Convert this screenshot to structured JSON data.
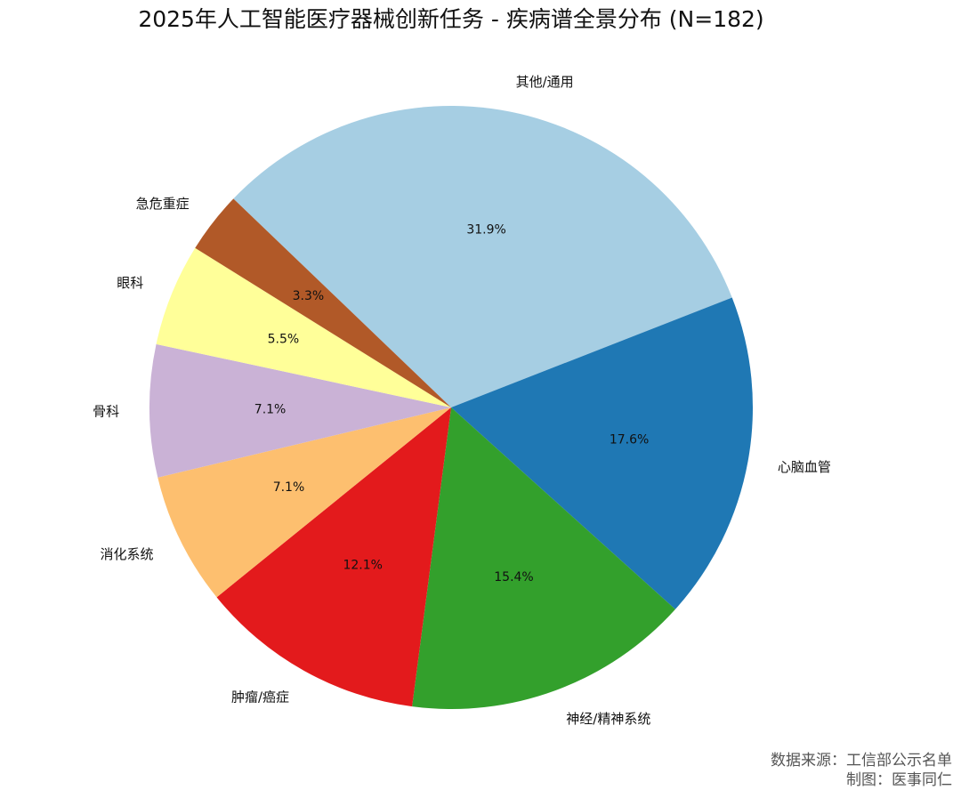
{
  "chart_data": {
    "type": "pie",
    "title": "2025年人工智能医疗器械创新任务 - 疾病谱全景分布 (N=182)",
    "slices": [
      {
        "label": "其他/通用",
        "value": 31.9,
        "pct_label": "31.9%",
        "color": "#a6cee3"
      },
      {
        "label": "心脑血管",
        "value": 17.6,
        "pct_label": "17.6%",
        "color": "#1f78b4"
      },
      {
        "label": "神经/精神系统",
        "value": 15.4,
        "pct_label": "15.4%",
        "color": "#33a02c"
      },
      {
        "label": "肿瘤/癌症",
        "value": 12.1,
        "pct_label": "12.1%",
        "color": "#e31a1c"
      },
      {
        "label": "消化系统",
        "value": 7.1,
        "pct_label": "7.1%",
        "color": "#fdbf6f"
      },
      {
        "label": "骨科",
        "value": 7.1,
        "pct_label": "7.1%",
        "color": "#cab2d6"
      },
      {
        "label": "眼科",
        "value": 5.5,
        "pct_label": "5.5%",
        "color": "#ffff99"
      },
      {
        "label": "急危重症",
        "value": 3.3,
        "pct_label": "3.3%",
        "color": "#b15928"
      }
    ]
  },
  "source": {
    "line1": "数据来源：工信部公示名单",
    "line2": "制图：医事同仁"
  }
}
